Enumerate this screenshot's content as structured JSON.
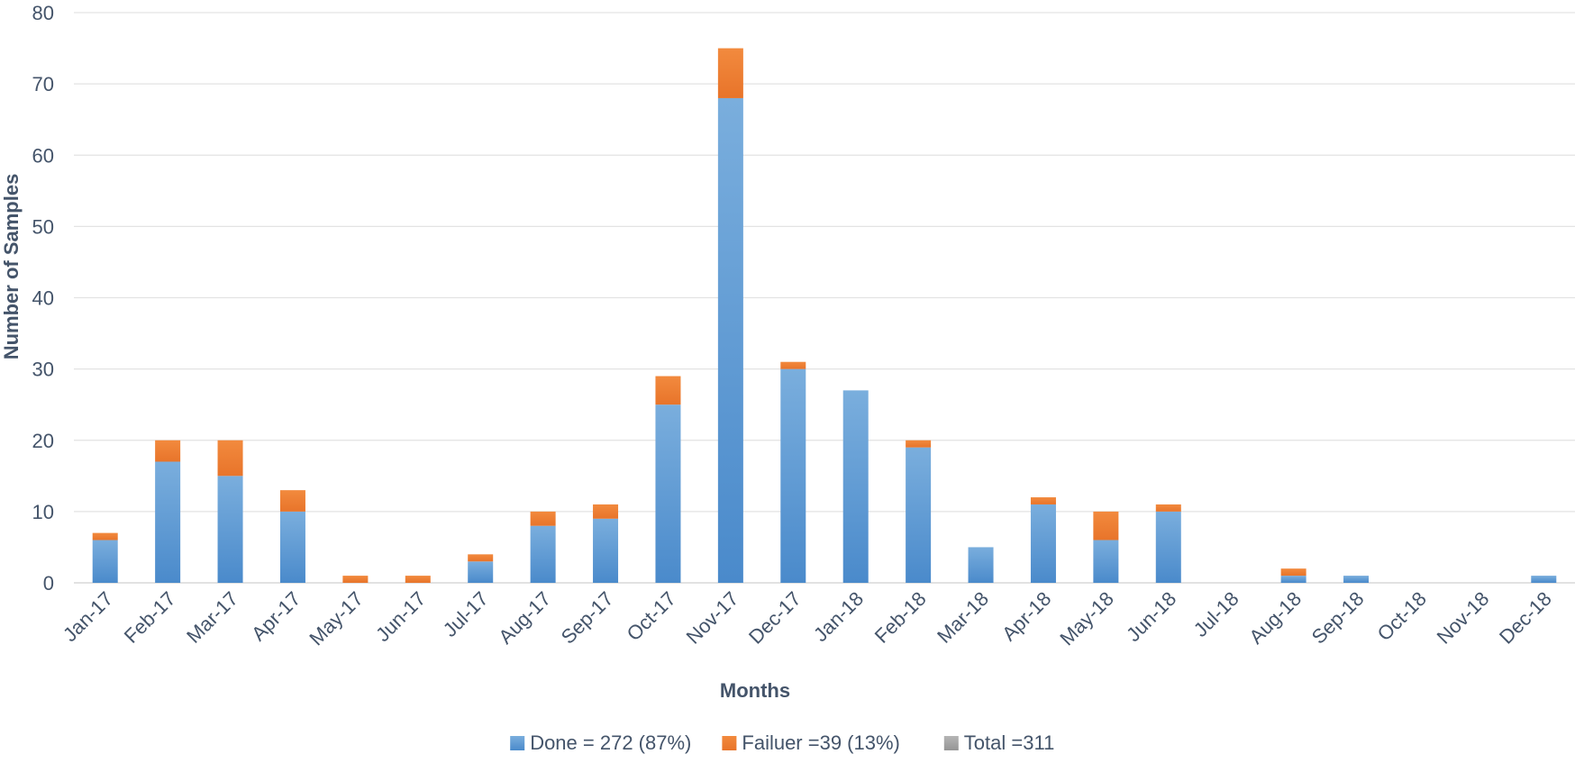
{
  "chart_data": {
    "type": "bar",
    "stacked": true,
    "title": "",
    "xlabel": "Months",
    "ylabel": "Number of Samples",
    "ylim": [
      0,
      80
    ],
    "yticks": [
      0,
      10,
      20,
      30,
      40,
      50,
      60,
      70,
      80
    ],
    "grid": true,
    "legend_position": "bottom",
    "categories": [
      "Jan-17",
      "Feb-17",
      "Mar-17",
      "Apr-17",
      "May-17",
      "Jun-17",
      "Jul-17",
      "Aug-17",
      "Sep-17",
      "Oct-17",
      "Nov-17",
      "Dec-17",
      "Jan-18",
      "Feb-18",
      "Mar-18",
      "Apr-18",
      "May-18",
      "Jun-18",
      "Jul-18",
      "Aug-18",
      "Sep-18",
      "Oct-18",
      "Nov-18",
      "Dec-18"
    ],
    "series": [
      {
        "name": "Done = 272 (87%)",
        "color": "#5b9bd5",
        "values": [
          6,
          17,
          15,
          10,
          0,
          0,
          3,
          8,
          9,
          25,
          68,
          30,
          27,
          19,
          5,
          11,
          6,
          10,
          0,
          1,
          1,
          0,
          0,
          1
        ]
      },
      {
        "name": "Failuer =39 (13%)",
        "color": "#ed7d31",
        "values": [
          1,
          3,
          5,
          3,
          1,
          1,
          1,
          2,
          2,
          4,
          7,
          1,
          0,
          1,
          0,
          1,
          4,
          1,
          0,
          1,
          0,
          0,
          0,
          0
        ]
      },
      {
        "name": "Total =311",
        "color": "#a5a5a5",
        "values": [
          0,
          0,
          0,
          0,
          0,
          0,
          0,
          0,
          0,
          0,
          0,
          0,
          0,
          0,
          0,
          0,
          0,
          0,
          0,
          0,
          0,
          0,
          0,
          0
        ]
      }
    ]
  }
}
